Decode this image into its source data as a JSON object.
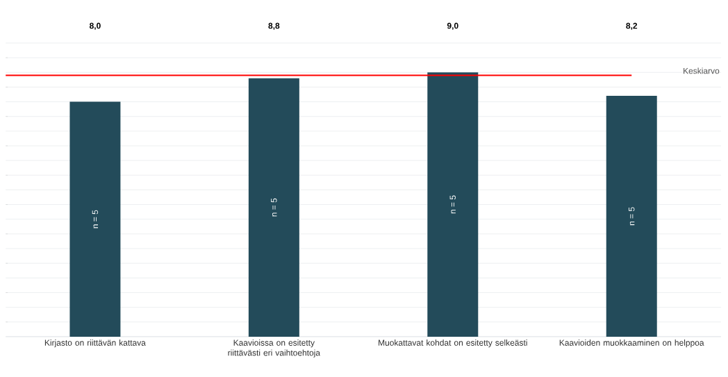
{
  "chart_data": {
    "type": "bar",
    "categories": [
      "Kirjasto on riittävän kattava",
      "Kaavioissa on esitetty riittävästi eri vaihtoehtoja",
      "Muokattavat kohdat on esitetty selkeästi",
      "Kaavioiden muokkaaminen on helppoa"
    ],
    "values": [
      8.0,
      8.8,
      9.0,
      8.2
    ],
    "value_labels": [
      "8,0",
      "8,8",
      "9,0",
      "8,2"
    ],
    "color": "#234b5a",
    "ylim": [
      0,
      10
    ],
    "tick_labels": "x",
    "grid": "y",
    "ref_lines": [
      {
        "axis": "y",
        "value": 8.9,
        "label": "Keskiarvo",
        "color": "#ff0000"
      }
    ],
    "annotations": [
      "n = 5",
      "n = 5",
      "n = 5",
      "n = 5"
    ]
  }
}
